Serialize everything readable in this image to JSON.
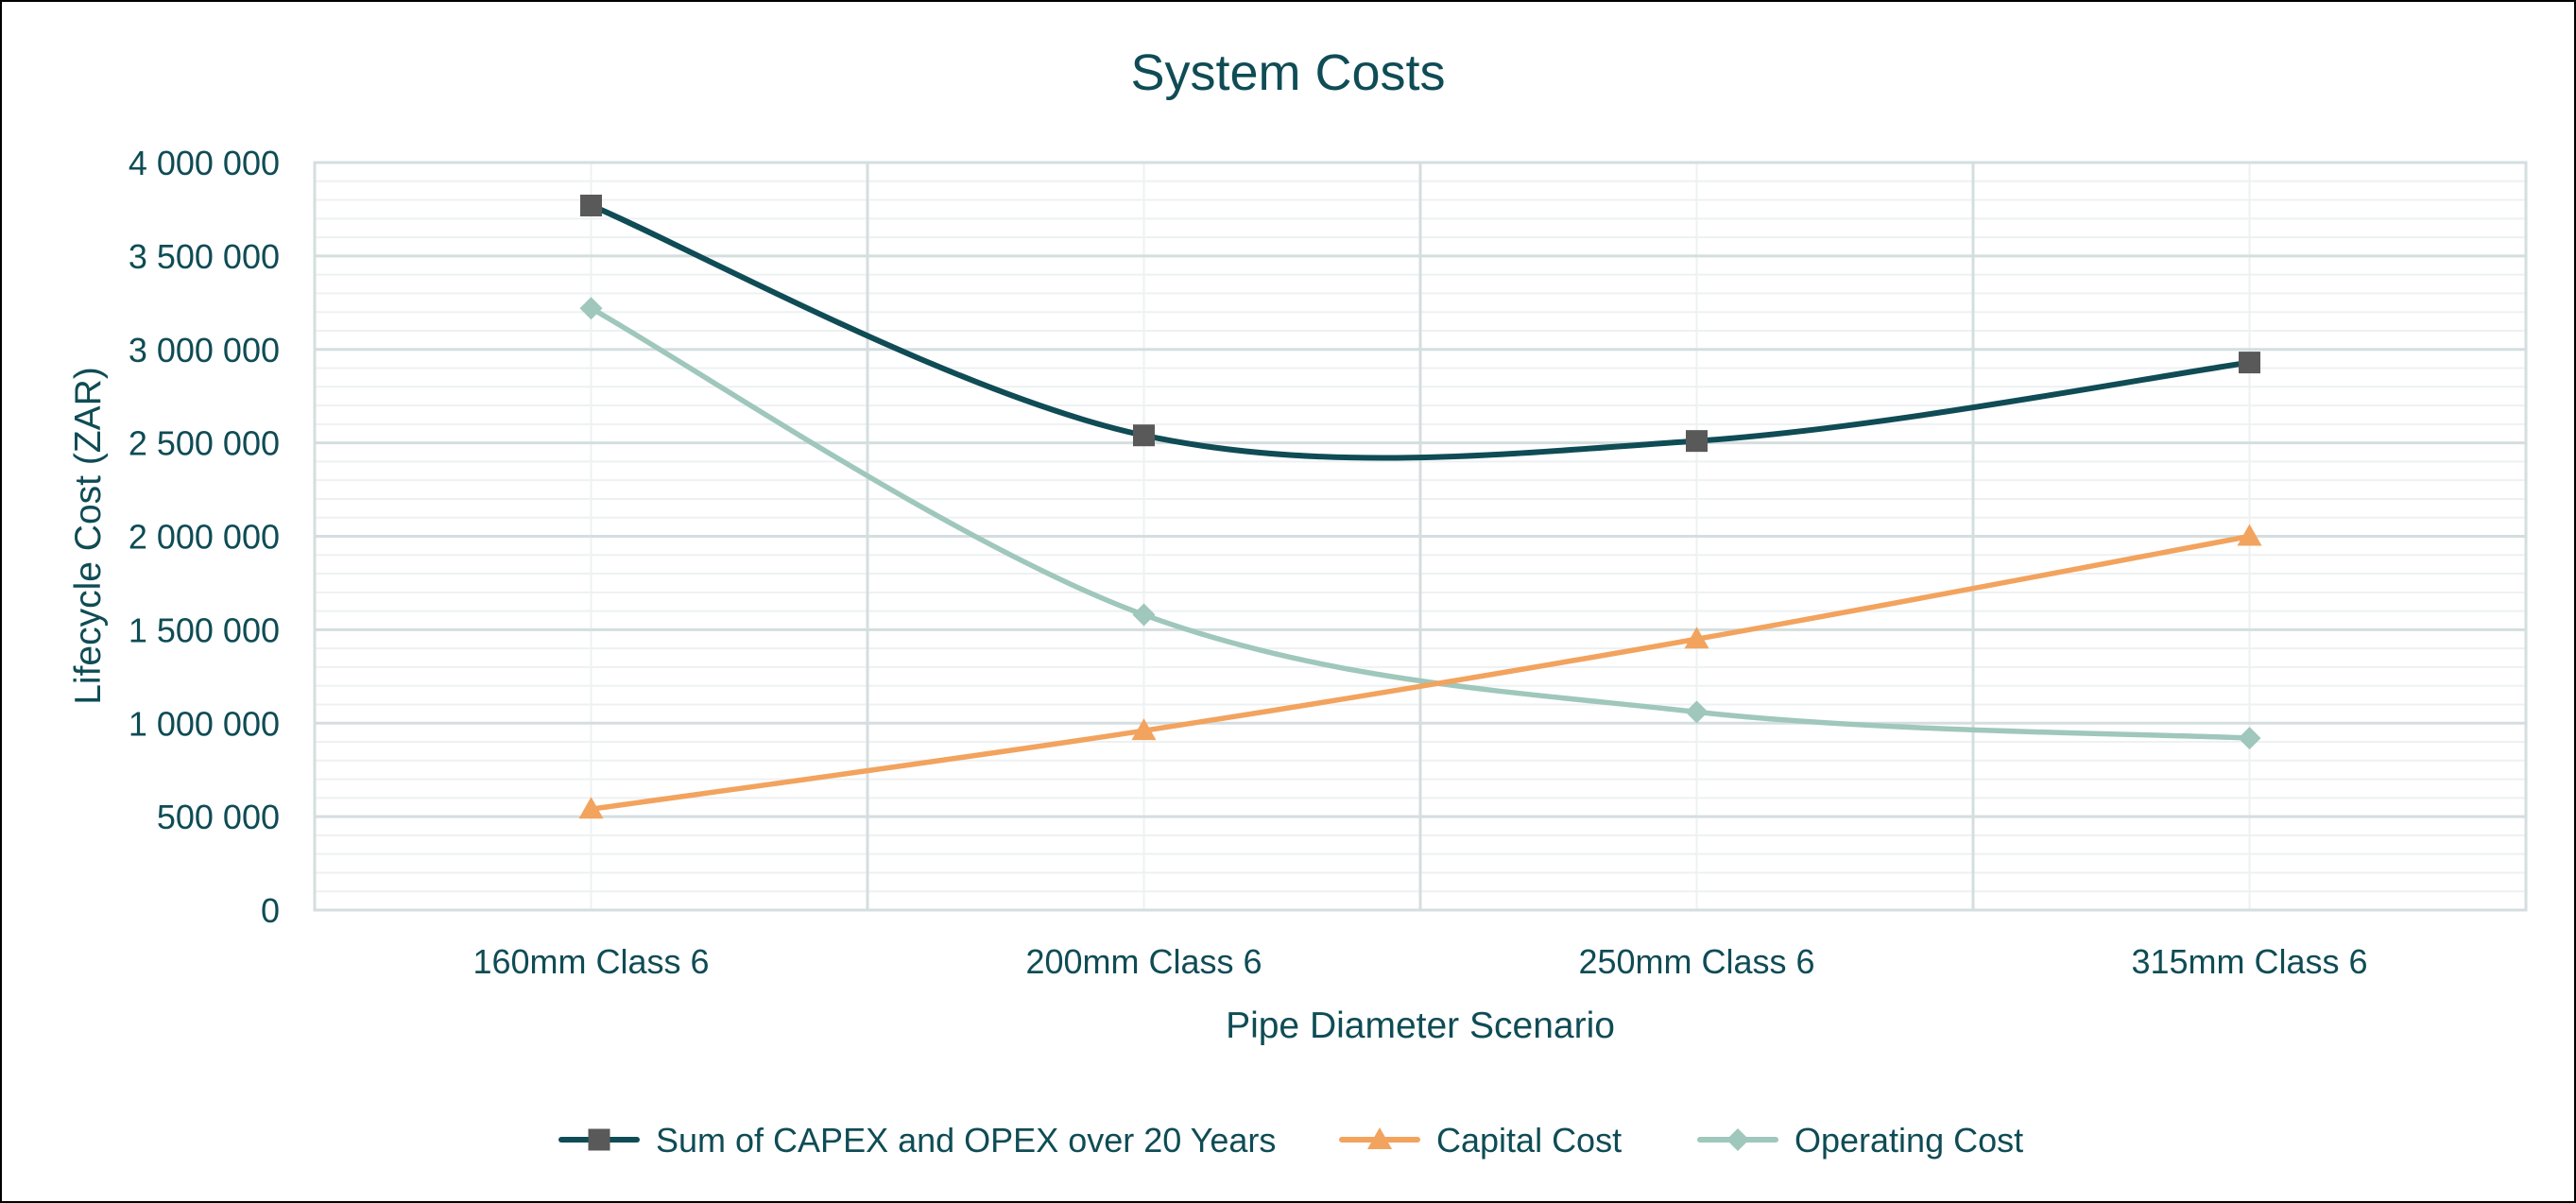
{
  "chart_data": {
    "type": "line",
    "title": "System Costs",
    "xlabel": "Pipe Diameter Scenario",
    "ylabel": "Lifecycle Cost (ZAR)",
    "categories": [
      "160mm Class 6",
      "200mm Class 6",
      "250mm Class 6",
      "315mm Class 6"
    ],
    "ylim": [
      0,
      4000000
    ],
    "y_ticks": [
      0,
      500000,
      1000000,
      1500000,
      2000000,
      2500000,
      3000000,
      3500000,
      4000000
    ],
    "y_tick_labels": [
      "0",
      "500 000",
      "1 000 000",
      "1 500 000",
      "2 000 000",
      "2 500 000",
      "3 000 000",
      "3 500 000",
      "4 000 000"
    ],
    "grid": true,
    "smooth": true,
    "legend_position": "bottom",
    "series": [
      {
        "name": "Sum of CAPEX and OPEX over 20 Years",
        "values": [
          3770000,
          2540000,
          2510000,
          2930000
        ],
        "color": "#0f4c55",
        "marker": "square"
      },
      {
        "name": "Capital Cost",
        "values": [
          540000,
          960000,
          1450000,
          2000000
        ],
        "color": "#f2a35e",
        "marker": "triangle"
      },
      {
        "name": "Operating Cost",
        "values": [
          3220000,
          1580000,
          1060000,
          920000
        ],
        "color": "#9fc7bb",
        "marker": "diamond"
      }
    ],
    "colors": {
      "text": "#0f4c55",
      "gridline": "#d5dedf",
      "minor_gridline": "#eef1f2",
      "plot_border": "#d5dedf",
      "square_marker": "#595959"
    }
  }
}
